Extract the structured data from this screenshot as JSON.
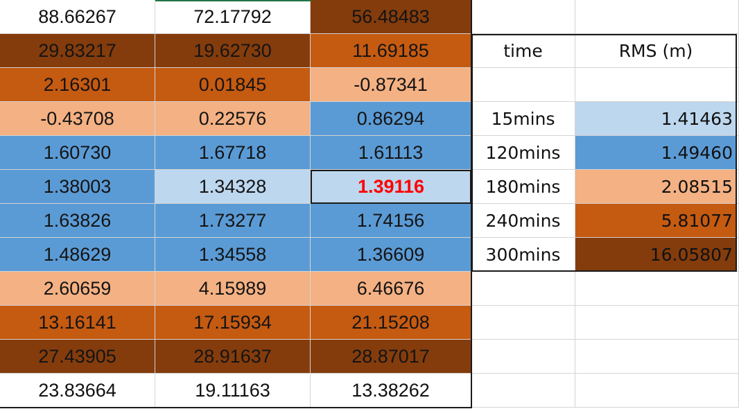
{
  "grid": {
    "rows": [
      [
        "88.66267",
        "72.17792",
        "56.48483"
      ],
      [
        "29.83217",
        "19.62730",
        "11.69185"
      ],
      [
        "2.16301",
        "0.01845",
        "-0.87341"
      ],
      [
        "-0.43708",
        "0.22576",
        "0.86294"
      ],
      [
        "1.60730",
        "1.67718",
        "1.61113"
      ],
      [
        "1.38003",
        "1.34328",
        "1.39116"
      ],
      [
        "1.63826",
        "1.73277",
        "1.74156"
      ],
      [
        "1.48629",
        "1.34558",
        "1.36609"
      ],
      [
        "2.60659",
        "4.15989",
        "6.46676"
      ],
      [
        "13.16141",
        "17.15934",
        "21.15208"
      ],
      [
        "27.43905",
        "28.91637",
        "28.87017"
      ],
      [
        "23.83664",
        "19.11163",
        "13.38262"
      ]
    ],
    "row_colors": [
      [
        "white",
        "white",
        "dbrown"
      ],
      [
        "dbrown",
        "dbrown",
        "orange"
      ],
      [
        "orange",
        "orange",
        "peach"
      ],
      [
        "peach",
        "peach",
        "blue"
      ],
      [
        "blue",
        "blue",
        "blue"
      ],
      [
        "blue",
        "lblue",
        "lblue"
      ],
      [
        "blue",
        "blue",
        "blue"
      ],
      [
        "blue",
        "blue",
        "blue"
      ],
      [
        "peach",
        "peach",
        "peach"
      ],
      [
        "orange",
        "orange",
        "orange"
      ],
      [
        "dbrown",
        "dbrown",
        "dbrown"
      ],
      [
        "white",
        "white",
        "white"
      ]
    ],
    "selected_cell": {
      "row": 5,
      "col": 2
    }
  },
  "legend": {
    "header_time": "time",
    "header_rms": "RMS (m)",
    "rows": [
      {
        "time": "15mins",
        "rms": "1.41463",
        "color": "lblue"
      },
      {
        "time": "120mins",
        "rms": "1.49460",
        "color": "blue"
      },
      {
        "time": "180mins",
        "rms": "2.08515",
        "color": "peach"
      },
      {
        "time": "240mins",
        "rms": "5.81077",
        "color": "orange"
      },
      {
        "time": "300mins",
        "rms": "16.05807",
        "color": "dbrown"
      }
    ]
  },
  "palette": {
    "white": "#ffffff",
    "dbrown": "#843c0c",
    "orange": "#c55a11",
    "peach": "#f4b183",
    "blue": "#5b9bd5",
    "lblue": "#bdd7ee",
    "highlight_text": "#ff0000"
  }
}
